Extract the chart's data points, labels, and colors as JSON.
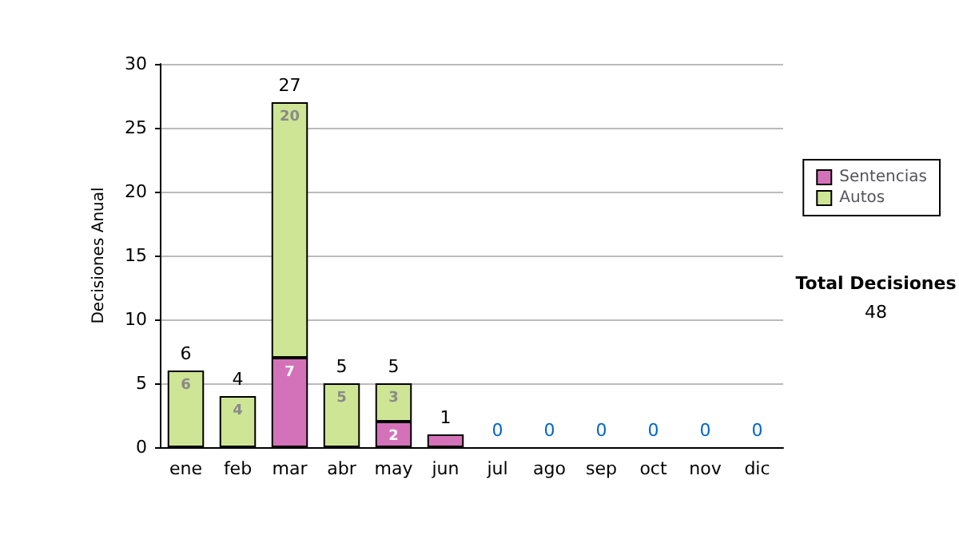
{
  "chart_data": {
    "type": "bar",
    "stacked": true,
    "ylabel": "Decisiones Anual",
    "categories": [
      "ene",
      "feb",
      "mar",
      "abr",
      "may",
      "jun",
      "jul",
      "ago",
      "sep",
      "oct",
      "nov",
      "dic"
    ],
    "series": [
      {
        "name": "Sentencias",
        "color": "#d472b9",
        "values": [
          0,
          0,
          7,
          0,
          2,
          1,
          0,
          0,
          0,
          0,
          0,
          0
        ],
        "value_labels": [
          null,
          null,
          "7",
          null,
          "2",
          null,
          null,
          null,
          null,
          null,
          null,
          null
        ]
      },
      {
        "name": "Autos",
        "color": "#cde594",
        "values": [
          6,
          4,
          20,
          5,
          3,
          0,
          0,
          0,
          0,
          0,
          0,
          0
        ],
        "value_labels": [
          "6",
          "4",
          "20",
          "5",
          "3",
          null,
          null,
          null,
          null,
          null,
          null,
          null
        ]
      }
    ],
    "totals": [
      "6",
      "4",
      "27",
      "5",
      "5",
      "1",
      "0",
      "0",
      "0",
      "0",
      "0",
      "0"
    ],
    "ylim": [
      0,
      30
    ],
    "yticks": [
      0,
      5,
      10,
      15,
      20,
      25,
      30
    ],
    "grid": "y",
    "legend": "right",
    "annotations": [
      "Total Decisiones",
      "48"
    ]
  }
}
